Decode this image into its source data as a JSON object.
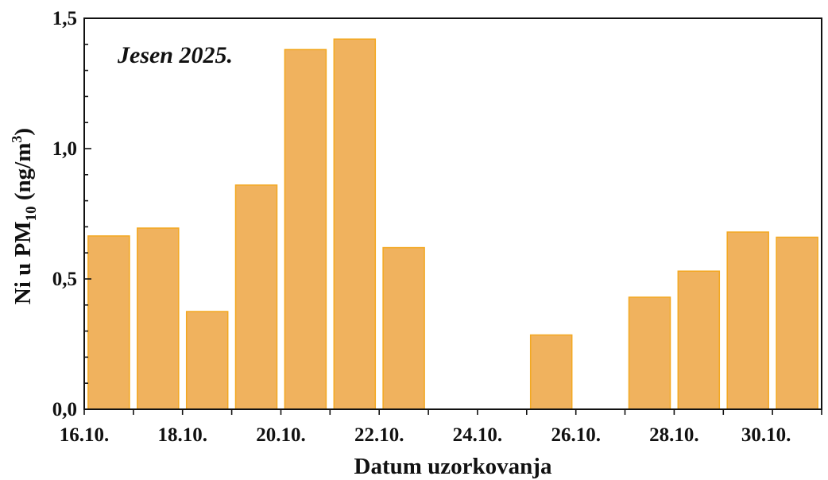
{
  "chart_data": {
    "type": "bar",
    "annotation": "Jesen 2025.",
    "xlabel": "Datum uzorkovanja",
    "ylabel_main": "Ni u PM",
    "ylabel_sub": "10",
    "ylabel_unit_open": " (ng/m",
    "ylabel_unit_sup": "3",
    "ylabel_unit_close": ")",
    "ylim": [
      0,
      1.5
    ],
    "y_major_ticks": [
      0,
      0.5,
      1.0,
      1.5
    ],
    "y_tick_labels": [
      "0,0",
      "0,5",
      "1,0",
      "1,5"
    ],
    "y_minor_step": 0.1,
    "categories": [
      "16.10.",
      "17.10.",
      "18.10.",
      "19.10.",
      "20.10.",
      "21.10.",
      "22.10.",
      "23.10.",
      "24.10.",
      "25.10.",
      "26.10.",
      "27.10.",
      "28.10.",
      "29.10.",
      "30.10."
    ],
    "x_tick_labels": [
      "16.10.",
      "18.10.",
      "20.10.",
      "22.10.",
      "24.10.",
      "26.10.",
      "28.10.",
      "30.10."
    ],
    "values": [
      0.665,
      0.695,
      0.375,
      0.86,
      1.38,
      1.42,
      0.62,
      null,
      null,
      0.285,
      null,
      0.43,
      0.53,
      0.68,
      0.66
    ],
    "bar_color": "#f0b25e",
    "bar_edge_color": "#f3a821",
    "grid": false,
    "legend": "none"
  }
}
